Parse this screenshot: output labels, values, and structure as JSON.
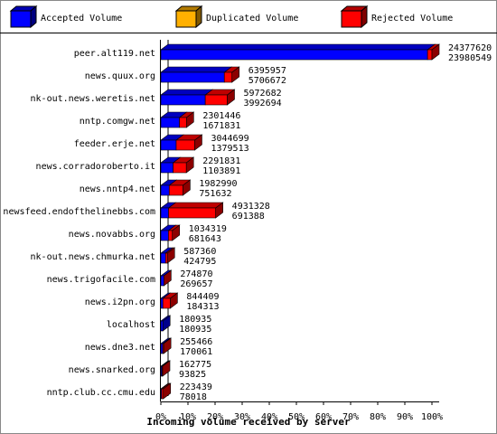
{
  "chart_data": {
    "type": "hbar-3d-stacked",
    "xlabel": "Incoming volume received by server",
    "categories": [
      "peer.alt119.net",
      "news.quux.org",
      "nk-out.news.weretis.net",
      "nntp.comgw.net",
      "feeder.erje.net",
      "news.corradoroberto.it",
      "news.nntp4.net",
      "newsfeed.endofthelinebbs.com",
      "news.novabbs.org",
      "nk-out.news.chmurka.net",
      "news.trigofacile.com",
      "news.i2pn.org",
      "localhost",
      "news.dne3.net",
      "news.snarked.org",
      "nntp.club.cc.cmu.edu"
    ],
    "totals": [
      24377620,
      6395957,
      5972682,
      2301446,
      3044699,
      2291831,
      1982990,
      4931328,
      1034319,
      587360,
      274870,
      844409,
      180935,
      255466,
      162775,
      223439
    ],
    "series": [
      {
        "name": "Accepted Volume",
        "color": "#0000ff",
        "values": [
          23980549,
          5706672,
          3992694,
          1671831,
          1379513,
          1103891,
          751632,
          691388,
          681643,
          424795,
          269657,
          184313,
          180935,
          170061,
          93825,
          78018
        ]
      },
      {
        "name": "Duplicated Volume",
        "color": "#ffb000",
        "values": [
          0,
          0,
          0,
          0,
          0,
          0,
          0,
          0,
          0,
          0,
          0,
          0,
          0,
          0,
          0,
          0
        ]
      },
      {
        "name": "Rejected Volume",
        "color": "#ff0000",
        "values": [
          397071,
          689285,
          1979988,
          629615,
          1665186,
          1187940,
          1231358,
          4239940,
          352676,
          162565,
          5213,
          660096,
          0,
          85405,
          68950,
          145421
        ]
      }
    ],
    "xlim": [
      0,
      24377620
    ],
    "xticks": [
      {
        "value": 0,
        "label": "0%"
      },
      {
        "value": 2437762,
        "label": "10%"
      },
      {
        "value": 4875524,
        "label": "20%"
      },
      {
        "value": 7313286,
        "label": "30%"
      },
      {
        "value": 9751048,
        "label": "40%"
      },
      {
        "value": 12188810,
        "label": "50%"
      },
      {
        "value": 14626572,
        "label": "60%"
      },
      {
        "value": 17064334,
        "label": "70%"
      },
      {
        "value": 19502096,
        "label": "80%"
      },
      {
        "value": 21939858,
        "label": "90%"
      },
      {
        "value": 24377620,
        "label": "100%"
      }
    ]
  }
}
